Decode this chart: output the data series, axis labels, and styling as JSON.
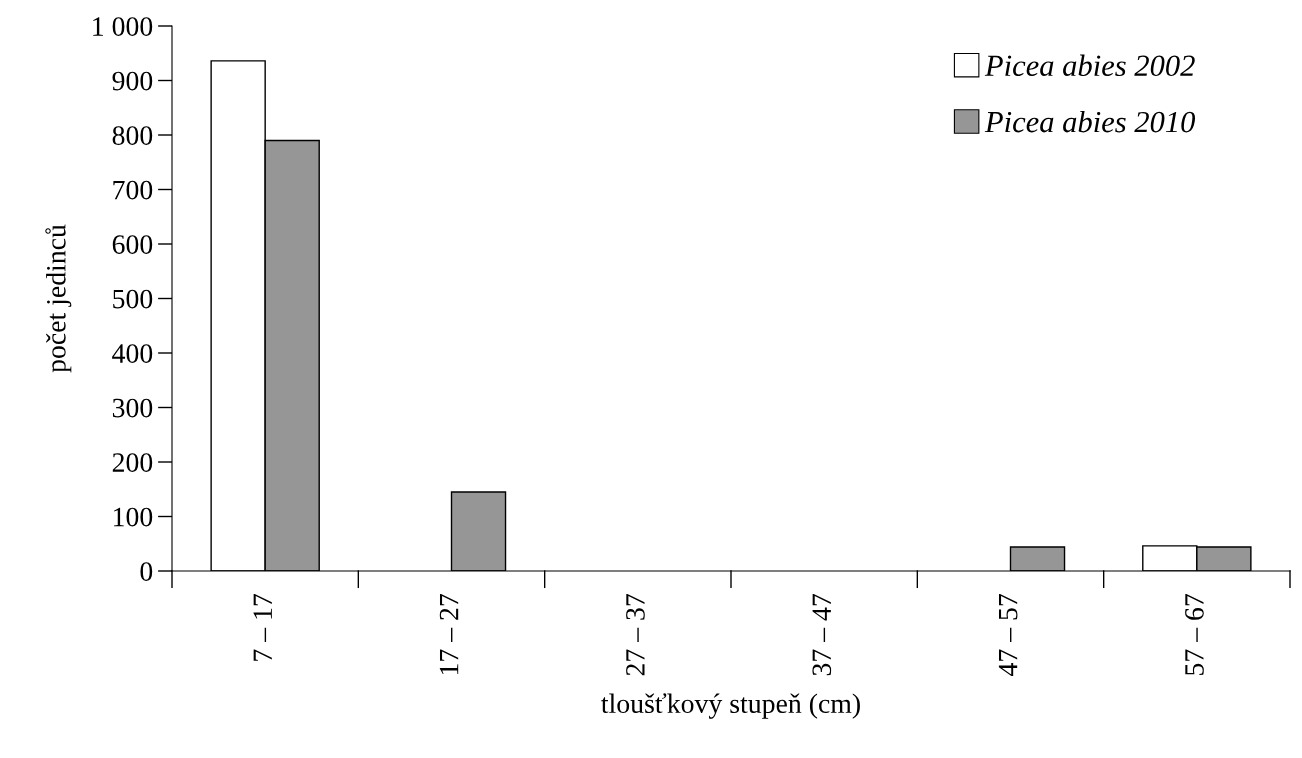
{
  "chart_data": {
    "type": "bar",
    "xlabel": "tloušťkový stupeň (cm)",
    "ylabel": "počet jedinců",
    "categories": [
      "7 – 17",
      "17 – 27",
      "27 – 37",
      "37 – 47",
      "47 – 57",
      "57 – 67"
    ],
    "series": [
      {
        "name": "Picea abies 2002",
        "color": "#ffffff",
        "values": [
          936,
          0,
          0,
          0,
          0,
          46
        ]
      },
      {
        "name": "Picea abies 2010",
        "color": "#969696",
        "values": [
          790,
          145,
          0,
          0,
          44,
          44
        ]
      }
    ],
    "ylim": [
      0,
      1000
    ],
    "yticks": [
      0,
      100,
      200,
      300,
      400,
      500,
      600,
      700,
      800,
      900,
      {
        "value": 1000,
        "label": "1 000"
      }
    ],
    "grid": false,
    "legend": "top right"
  }
}
